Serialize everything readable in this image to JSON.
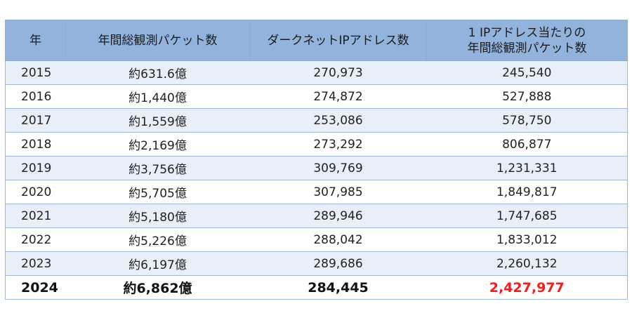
{
  "table": {
    "headers": [
      "年",
      "年間総観測パケット数",
      "ダークネットIPアドレス数",
      "1 IPアドレス当たりの\n年間総観測パケット数"
    ],
    "header_lines": {
      "per_ip_line1": "1 IPアドレス当たりの",
      "per_ip_line2": "年間総観測パケット数"
    },
    "rows": [
      {
        "year": "2015",
        "total_packets": "約631.6億",
        "ip_count": "270,973",
        "per_ip": "245,540"
      },
      {
        "year": "2016",
        "total_packets": "約1,440億",
        "ip_count": "274,872",
        "per_ip": "527,888"
      },
      {
        "year": "2017",
        "total_packets": "約1,559億",
        "ip_count": "253,086",
        "per_ip": "578,750"
      },
      {
        "year": "2018",
        "total_packets": "約2,169億",
        "ip_count": "273,292",
        "per_ip": "806,877"
      },
      {
        "year": "2019",
        "total_packets": "約3,756億",
        "ip_count": "309,769",
        "per_ip": "1,231,331"
      },
      {
        "year": "2020",
        "total_packets": "約5,705億",
        "ip_count": "307,985",
        "per_ip": "1,849,817"
      },
      {
        "year": "2021",
        "total_packets": "約5,180億",
        "ip_count": "289,946",
        "per_ip": "1,747,685"
      },
      {
        "year": "2022",
        "total_packets": "約5,226億",
        "ip_count": "288,042",
        "per_ip": "1,833,012"
      },
      {
        "year": "2023",
        "total_packets": "約6,197億",
        "ip_count": "289,686",
        "per_ip": "2,260,132"
      }
    ],
    "latest": {
      "year": "2024",
      "total_packets": "約6,862億",
      "ip_count": "284,445",
      "per_ip": "2,427,977"
    }
  },
  "colors": {
    "header_bg": "#92b4dc",
    "row_stripe": "#e9eff8",
    "border": "#9bb8dc",
    "highlight": "#ff1a1a"
  }
}
